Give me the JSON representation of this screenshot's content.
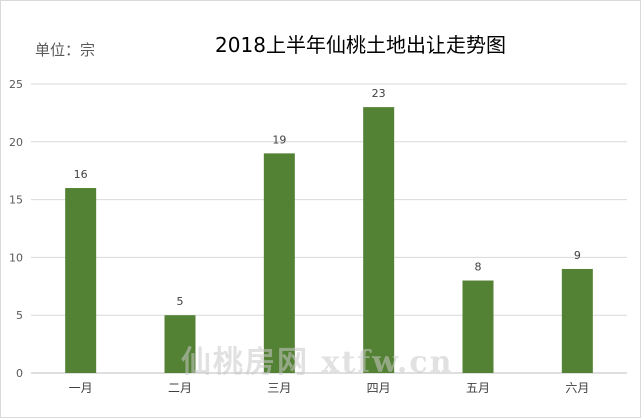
{
  "chart_data": {
    "type": "bar",
    "title": "2018上半年仙桃土地出让走势图",
    "unit_label": "单位：宗",
    "categories": [
      "一月",
      "二月",
      "三月",
      "四月",
      "五月",
      "六月"
    ],
    "values": [
      16,
      5,
      19,
      23,
      8,
      9
    ],
    "ylim": [
      0,
      25
    ],
    "yticks": [
      0,
      5,
      10,
      15,
      20,
      25
    ],
    "grid": true,
    "bar_color": "#548235",
    "xlabel": "",
    "ylabel": ""
  },
  "watermark": "仙桃房网 xtfw.cn"
}
